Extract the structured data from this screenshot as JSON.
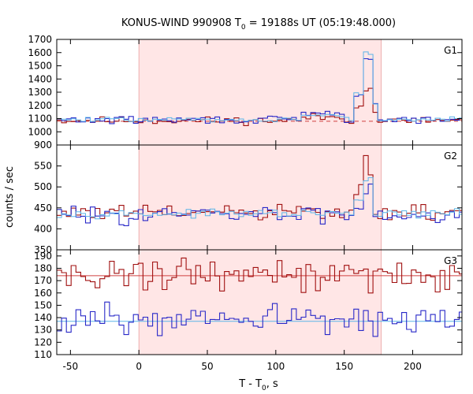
{
  "chart_data": {
    "type": "line",
    "title_main": "KONUS-WIND 990908 T",
    "title_sub": "0",
    "title_rest": " = 19188s UT (05:19:48.000)",
    "xlabel_main": "T - T",
    "xlabel_sub": "0",
    "xlabel_rest": ", s",
    "ylabel": "counts / sec",
    "xlim": [
      -60,
      236
    ],
    "xticks": [
      -50,
      0,
      50,
      100,
      150,
      200
    ],
    "shaded_interval": [
      0,
      177
    ],
    "grid": false,
    "colors": {
      "shade": "#ffe6e6",
      "shade_edge": "#e8a0a0",
      "red": "#a01010",
      "blue": "#2828c8",
      "cyan": "#5ab4e8",
      "bg_line_red": "#d04040"
    },
    "panels": [
      {
        "label": "G1",
        "ylim": [
          900,
          1700
        ],
        "yticks": [
          900,
          1000,
          1100,
          1200,
          1300,
          1400,
          1500,
          1600,
          1700
        ],
        "ytick_labels": [
          "900",
          "1000",
          "1100",
          "1200",
          "1300",
          "1400",
          "1500",
          "1600",
          "1700"
        ],
        "background_levels": [
          {
            "value": 1080,
            "style": "dashed",
            "color": "bg_line_red"
          }
        ],
        "series": [
          {
            "color": "red",
            "base": 1085,
            "noise": 20,
            "seed": 11,
            "features": [
              [
                120,
                150,
                25
              ],
              [
                158,
                163,
                120
              ],
              [
                164,
                170,
                230
              ],
              [
                170,
                175,
                60
              ]
            ]
          },
          {
            "color": "blue",
            "base": 1090,
            "noise": 20,
            "seed": 29,
            "features": [
              [
                120,
                150,
                45
              ],
              [
                158,
                163,
                180
              ],
              [
                164,
                170,
                470
              ],
              [
                170,
                175,
                110
              ]
            ]
          },
          {
            "color": "cyan",
            "base": 1092,
            "noise": 12,
            "seed": 47,
            "features": [
              [
                120,
                150,
                35
              ],
              [
                158,
                163,
                190
              ],
              [
                164,
                170,
                500
              ],
              [
                170,
                175,
                120
              ]
            ]
          }
        ]
      },
      {
        "label": "G2",
        "ylim": [
          350,
          600
        ],
        "yticks": [
          350,
          400,
          450,
          500,
          550
        ],
        "ytick_labels": [
          "350",
          "400",
          "450",
          "500",
          "550"
        ],
        "background_levels": [],
        "series": [
          {
            "color": "red",
            "base": 438,
            "noise": 14,
            "seed": 61,
            "features": [
              [
                158,
                163,
                50
              ],
              [
                163,
                167,
                120
              ],
              [
                167,
                170,
                80
              ]
            ]
          },
          {
            "color": "blue",
            "base": 434,
            "noise": 14,
            "seed": 83,
            "features": [
              [
                158,
                163,
                25
              ],
              [
                163,
                167,
                55
              ],
              [
                167,
                170,
                75
              ]
            ]
          },
          {
            "color": "cyan",
            "base": 436,
            "noise": 6,
            "seed": 97,
            "features": [
              [
                158,
                163,
                30
              ],
              [
                163,
                167,
                80
              ],
              [
                167,
                170,
                80
              ]
            ]
          }
        ]
      },
      {
        "label": "G3",
        "ylim": [
          110,
          195
        ],
        "yticks": [
          110,
          120,
          130,
          140,
          150,
          160,
          170,
          180,
          190
        ],
        "ytick_labels": [
          "110",
          "120",
          "130",
          "140",
          "150",
          "160",
          "170",
          "180",
          "190"
        ],
        "background_levels": [
          {
            "value": 174,
            "style": "solid",
            "color": "bg_line_red"
          },
          {
            "value": 137,
            "style": "solid",
            "color": "cyan"
          }
        ],
        "series": [
          {
            "color": "red",
            "base": 175,
            "noise": 9,
            "seed": 131,
            "features": []
          },
          {
            "color": "blue",
            "base": 137,
            "noise": 8,
            "seed": 151,
            "features": []
          }
        ]
      }
    ],
    "bin_width": 3.5
  }
}
